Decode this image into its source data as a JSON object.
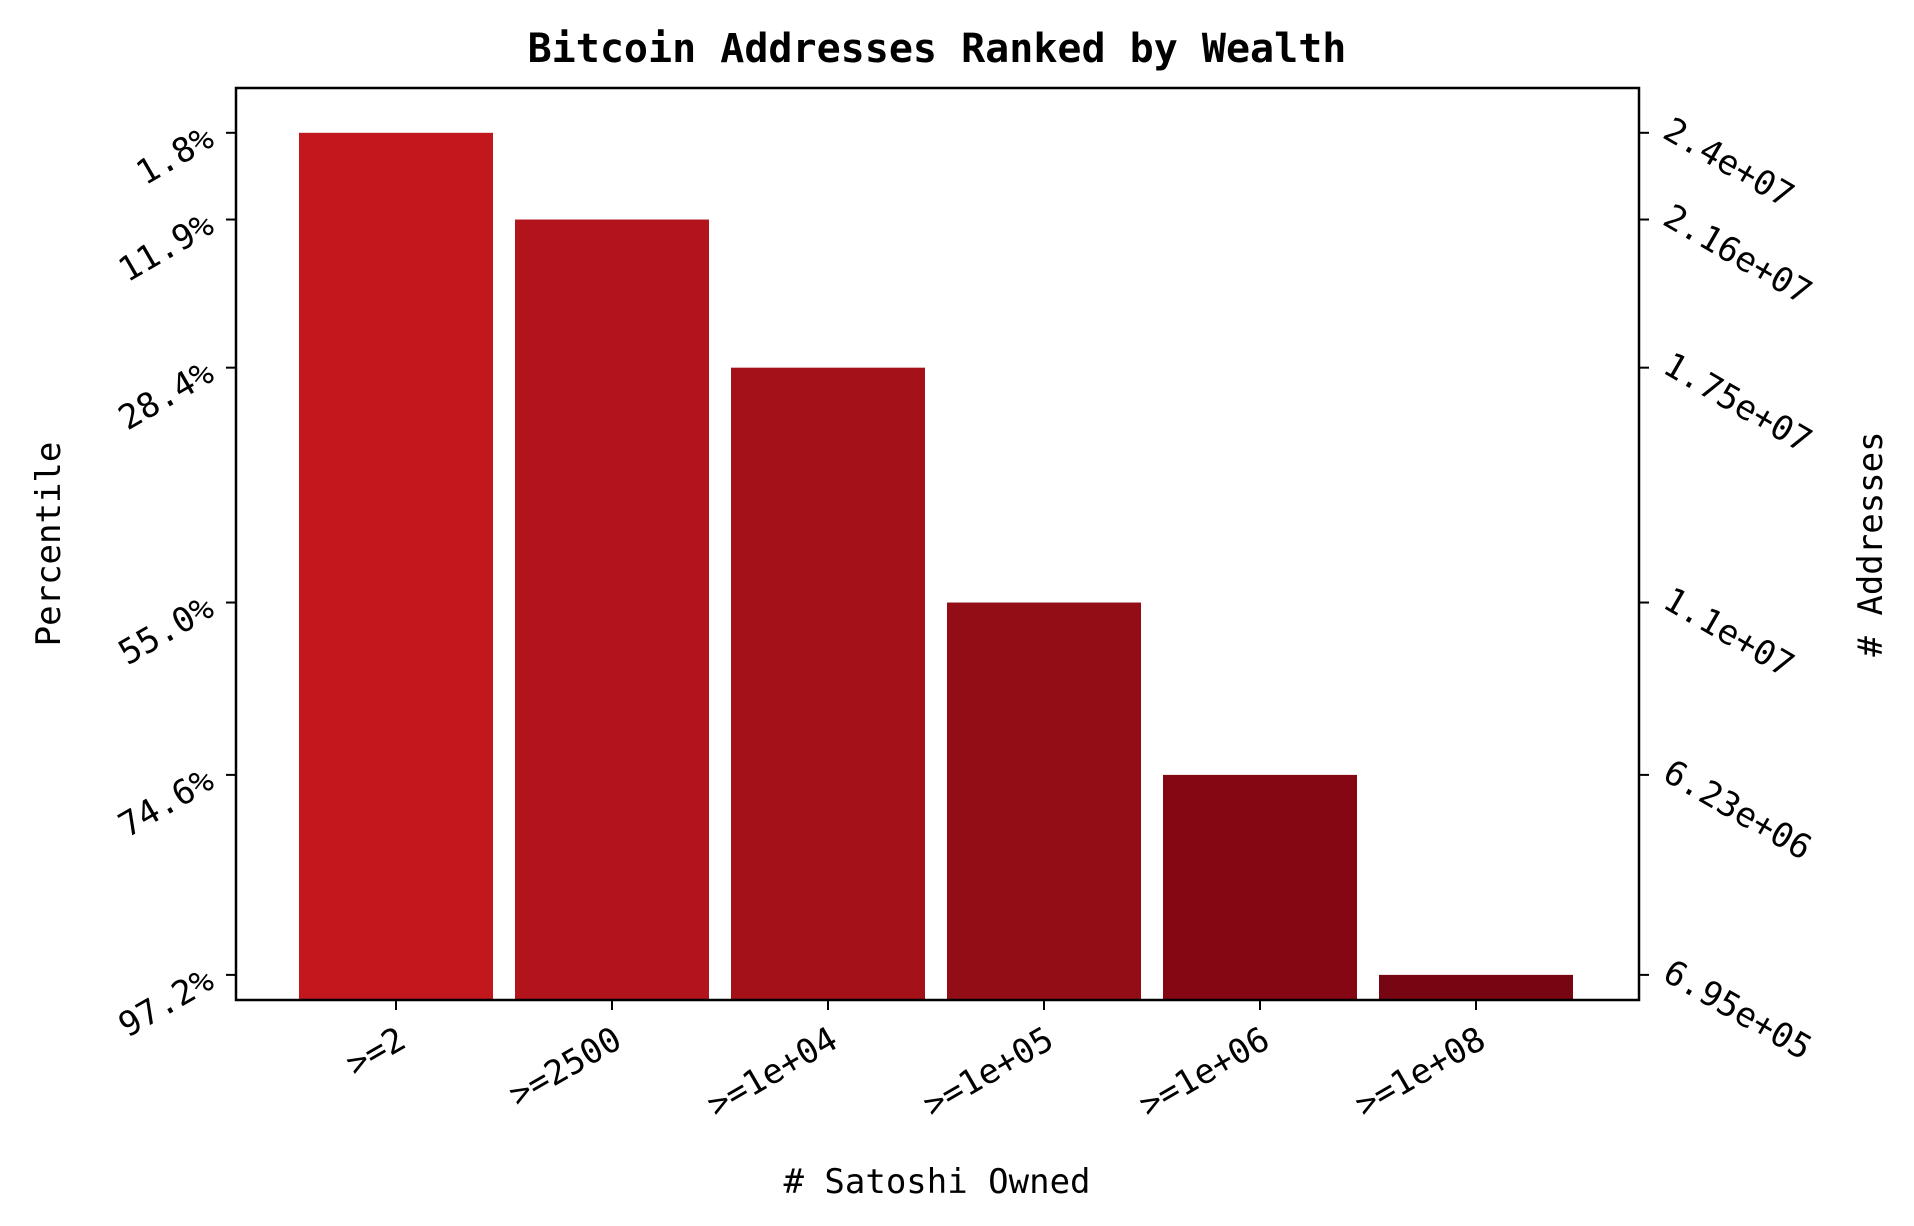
{
  "chart_data": {
    "type": "bar",
    "title": "Bitcoin Addresses Ranked by Wealth",
    "xlabel": "# Satoshi Owned",
    "ylabel": "Percentile",
    "y2label": "# Addresses",
    "categories": [
      ">=2",
      ">=2500",
      ">=1e+04",
      ">=1e+05",
      ">=1e+06",
      ">=1e+08"
    ],
    "series": [
      {
        "values": [
          24000000,
          21600000,
          17500000,
          11000000,
          6230000,
          695000
        ]
      }
    ],
    "ylim": [
      0,
      25240000
    ],
    "yticks_left": {
      "values": [
        24000000,
        21600000,
        17500000,
        11000000,
        6230000,
        695000
      ],
      "labels": [
        "1.8%",
        "11.9%",
        "28.4%",
        "55.0%",
        "74.6%",
        "97.2%"
      ]
    },
    "yticks_right": {
      "values": [
        24000000,
        21600000,
        17500000,
        11000000,
        6230000,
        695000
      ],
      "labels": [
        "2.4e+07",
        "2.16e+07",
        "1.75e+07",
        "1.1e+07",
        "6.23e+06",
        "6.95e+05"
      ]
    },
    "bar_colors": [
      "#c1171d",
      "#b3141b",
      "#a41119",
      "#930d16",
      "#850713",
      "#780512"
    ],
    "grid": false,
    "legend": "none"
  }
}
